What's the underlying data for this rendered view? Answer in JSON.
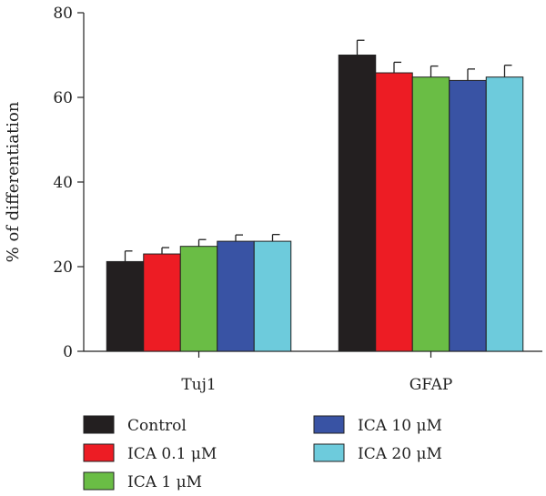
{
  "chart_data": {
    "type": "bar",
    "title": "",
    "xlabel": "",
    "ylabel": "% of differentiation",
    "ylim": [
      0,
      80
    ],
    "yticks": [
      0,
      20,
      40,
      60,
      80
    ],
    "categories": [
      "Tuj1",
      "GFAP"
    ],
    "series": [
      {
        "name": "Control",
        "color": "#231f20",
        "values": [
          21.2,
          70.0
        ],
        "errors": [
          2.5,
          3.5
        ]
      },
      {
        "name": "ICA 0.1 μM",
        "color": "#ed1c24",
        "values": [
          23.0,
          65.8
        ],
        "errors": [
          1.5,
          2.5
        ]
      },
      {
        "name": "ICA 1 μM",
        "color": "#6abd45",
        "values": [
          24.8,
          64.8
        ],
        "errors": [
          1.6,
          2.6
        ]
      },
      {
        "name": "ICA 10 μM",
        "color": "#3953a4",
        "values": [
          26.0,
          64.0
        ],
        "errors": [
          1.5,
          2.7
        ]
      },
      {
        "name": "ICA 20 μM",
        "color": "#6dcbdc",
        "values": [
          26.0,
          64.8
        ],
        "errors": [
          1.6,
          2.8
        ]
      }
    ],
    "legend_position": "bottom",
    "grid": false
  }
}
